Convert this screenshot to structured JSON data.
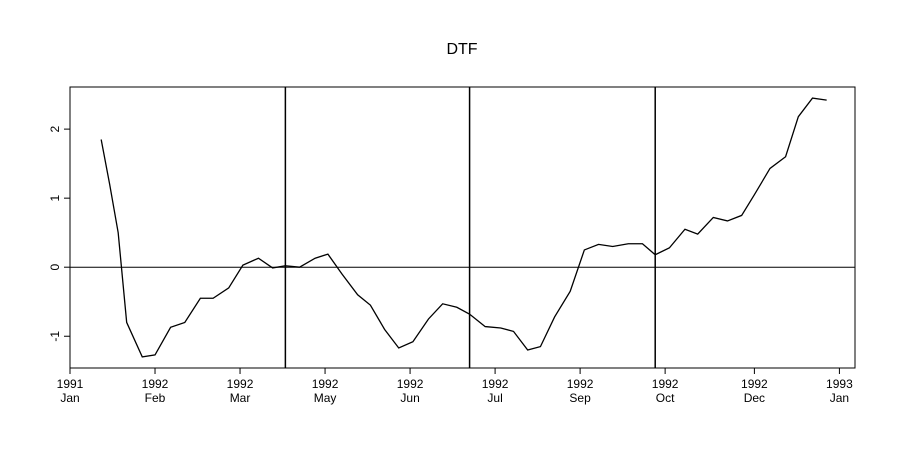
{
  "chart_data": {
    "type": "line",
    "title": "DTF",
    "x": [
      2.2,
      2.8,
      3.4,
      4.0,
      5.1,
      6.0,
      7.1,
      8.1,
      9.2,
      10.1,
      11.2,
      12.2,
      13.3,
      14.3,
      15.2,
      16.2,
      17.3,
      18.2,
      19.2,
      20.3,
      21.2,
      22.2,
      23.2,
      24.2,
      25.3,
      26.3,
      27.3,
      28.2,
      29.3,
      30.4,
      31.3,
      32.3,
      33.2,
      34.2,
      35.3,
      36.3,
      37.3,
      38.3,
      39.4,
      40.4,
      41.3,
      42.3,
      43.4,
      44.3,
      45.4,
      46.4,
      47.4,
      48.3,
      49.4,
      50.5,
      51.4,
      52.4,
      53.4
    ],
    "series": [
      {
        "color": "#000000",
        "values": [
          1.85,
          1.2,
          0.5,
          -0.8,
          -1.3,
          -1.27,
          -0.87,
          -0.8,
          -0.45,
          -0.45,
          -0.3,
          0.03,
          0.13,
          -0.01,
          0.02,
          0.0,
          0.13,
          0.19,
          -0.1,
          -0.4,
          -0.55,
          -0.9,
          -1.17,
          -1.08,
          -0.75,
          -0.53,
          -0.58,
          -0.68,
          -0.86,
          -0.88,
          -0.93,
          -1.2,
          -1.15,
          -0.72,
          -0.35,
          0.25,
          0.33,
          0.3,
          0.34,
          0.34,
          0.18,
          0.28,
          0.55,
          0.48,
          0.72,
          0.67,
          0.75,
          1.05,
          1.43,
          1.6,
          2.18,
          2.45,
          2.42
        ]
      }
    ],
    "xlim": [
      0,
      55.4
    ],
    "ylim": [
      -1.46,
      2.61
    ],
    "yticks": [
      -1,
      0,
      1,
      2
    ],
    "xticks": [
      {
        "value": 0,
        "label": "1991\nJan"
      },
      {
        "value": 6,
        "label": "1992\nFeb"
      },
      {
        "value": 12,
        "label": "1992\nMar"
      },
      {
        "value": 18,
        "label": "1992\nMay"
      },
      {
        "value": 24,
        "label": "1992\nJun"
      },
      {
        "value": 30,
        "label": "1992\nJul"
      },
      {
        "value": 36,
        "label": "1992\nSep"
      },
      {
        "value": 42,
        "label": "1992\nOct"
      },
      {
        "value": 48.3,
        "label": "1992\nDec"
      },
      {
        "value": 54.3,
        "label": "1993\nJan"
      }
    ],
    "vlines": [
      15.2,
      28.2,
      41.3
    ],
    "hlines": [
      0
    ]
  }
}
